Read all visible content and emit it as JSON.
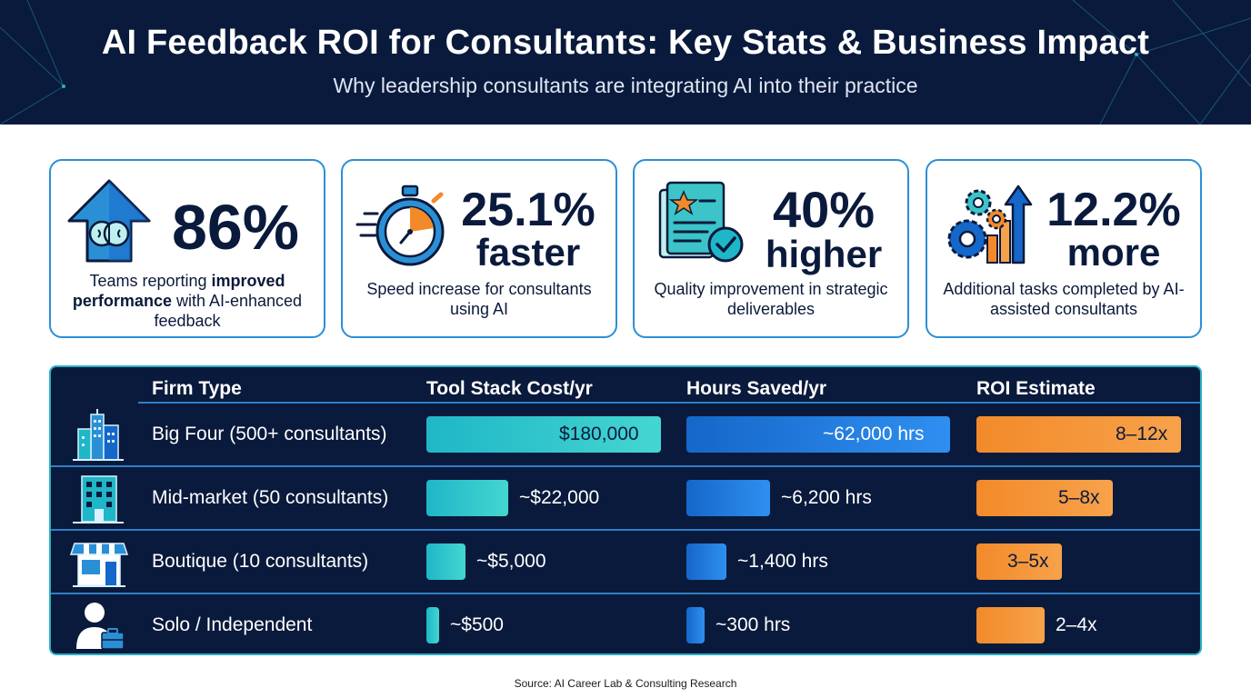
{
  "header": {
    "title": "AI Feedback ROI for Consultants: Key Stats & Business Impact",
    "subtitle": "Why leadership consultants are integrating AI into their practice"
  },
  "stats": [
    {
      "value": "86%",
      "unit": "",
      "desc_pre": "Teams reporting ",
      "desc_bold": "improved performance",
      "desc_post": " with AI-enhanced feedback",
      "icon": "brain-arrow-icon"
    },
    {
      "value": "25.1%",
      "unit": "faster",
      "desc": "Speed increase for consultants using AI",
      "icon": "stopwatch-icon"
    },
    {
      "value": "40%",
      "unit": "higher",
      "desc": "Quality improvement in strategic deliverables",
      "icon": "document-check-icon"
    },
    {
      "value": "12.2%",
      "unit": "more",
      "desc": "Additional tasks completed by AI-assisted consultants",
      "icon": "gears-growth-icon"
    }
  ],
  "chart_data": {
    "type": "table",
    "columns": [
      "Firm Type",
      "Tool Stack Cost/yr",
      "Hours Saved/yr",
      "ROI Estimate"
    ],
    "rows": [
      {
        "firm": "Big Four (500+ consultants)",
        "cost": 180000,
        "cost_label": "$180,000",
        "hours": 62000,
        "hours_label": "~62,000 hrs",
        "roi_min": 8,
        "roi_max": 12,
        "roi_label": "8–12x",
        "icon": "skyscraper-icon"
      },
      {
        "firm": "Mid-market (50 consultants)",
        "cost": 22000,
        "cost_label": "~$22,000",
        "hours": 6200,
        "hours_label": "~6,200 hrs",
        "roi_min": 5,
        "roi_max": 8,
        "roi_label": "5–8x",
        "icon": "office-building-icon"
      },
      {
        "firm": "Boutique (10 consultants)",
        "cost": 5000,
        "cost_label": "~$5,000",
        "hours": 1400,
        "hours_label": "~1,400 hrs",
        "roi_min": 3,
        "roi_max": 5,
        "roi_label": "3–5x",
        "icon": "storefront-icon"
      },
      {
        "firm": "Solo / Independent",
        "cost": 500,
        "cost_label": "~$500",
        "hours": 300,
        "hours_label": "~300 hrs",
        "roi_min": 2,
        "roi_max": 4,
        "roi_label": "2–4x",
        "icon": "person-briefcase-icon"
      }
    ]
  },
  "colors": {
    "navy": "#0a1a3c",
    "card_border": "#2b8fd6",
    "table_border": "#2bb0c6",
    "cost_bar": "#1fb6c7",
    "hours_bar": "#1567c9",
    "roi_bar": "#f28a2a"
  },
  "source": "Source: AI Career Lab & Consulting Research"
}
